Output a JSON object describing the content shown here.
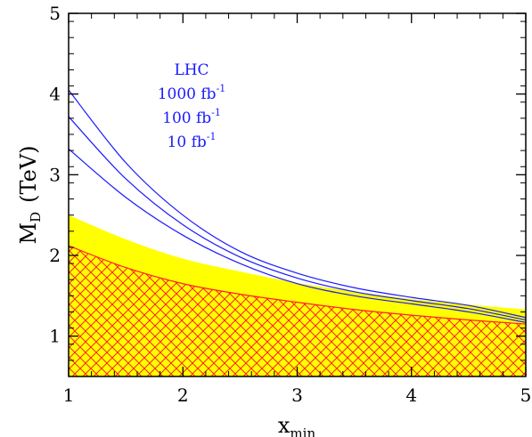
{
  "chart_data": {
    "type": "line",
    "title": "",
    "xlabel": {
      "main": "x",
      "sub": "min"
    },
    "ylabel": {
      "main": "M",
      "sub": "D",
      "unit": "(TeV)"
    },
    "xlim": [
      1,
      5
    ],
    "ylim": [
      0.5,
      5
    ],
    "xticks": [
      1,
      2,
      3,
      4,
      5
    ],
    "yticks": [
      1,
      2,
      3,
      4,
      5
    ],
    "grid": false,
    "annotation": {
      "header": "LHC",
      "lines": [
        {
          "value": "1000 fb",
          "exp": "-1"
        },
        {
          "value": "100 fb",
          "exp": "-1"
        },
        {
          "value": "10 fb",
          "exp": "-1"
        }
      ]
    },
    "series": [
      {
        "kind": "band",
        "color": "#ffff00",
        "x": [
          1,
          1.5,
          2,
          2.5,
          3,
          3.5,
          4,
          4.5,
          5
        ],
        "lower": [
          2.12,
          1.85,
          1.65,
          1.52,
          1.42,
          1.33,
          1.26,
          1.2,
          1.15
        ],
        "upper": [
          2.5,
          2.2,
          1.96,
          1.8,
          1.66,
          1.55,
          1.46,
          1.39,
          1.33
        ]
      },
      {
        "kind": "hatched",
        "fill": "#ffff00",
        "hatch_color": "#ff2020",
        "x": [
          1,
          1.5,
          2,
          2.5,
          3,
          3.5,
          4,
          4.5,
          5
        ],
        "values": [
          2.12,
          1.85,
          1.65,
          1.52,
          1.42,
          1.33,
          1.26,
          1.2,
          1.15
        ]
      },
      {
        "kind": "line",
        "color": "#1a1aff",
        "x": [
          1,
          1.5,
          2,
          2.5,
          3,
          3.5,
          4,
          4.5,
          5
        ],
        "values": [
          4.05,
          3.15,
          2.5,
          2.05,
          1.78,
          1.6,
          1.48,
          1.38,
          1.23
        ]
      },
      {
        "kind": "line",
        "color": "#1a1aff",
        "x": [
          1,
          1.5,
          2,
          2.5,
          3,
          3.5,
          4,
          4.5,
          5
        ],
        "values": [
          3.72,
          2.95,
          2.38,
          1.98,
          1.72,
          1.55,
          1.44,
          1.34,
          1.2
        ]
      },
      {
        "kind": "line",
        "color": "#1a1aff",
        "x": [
          1,
          1.5,
          2,
          2.5,
          3,
          3.5,
          4,
          4.5,
          5
        ],
        "values": [
          3.32,
          2.72,
          2.25,
          1.9,
          1.65,
          1.5,
          1.4,
          1.3,
          1.17
        ]
      }
    ]
  }
}
